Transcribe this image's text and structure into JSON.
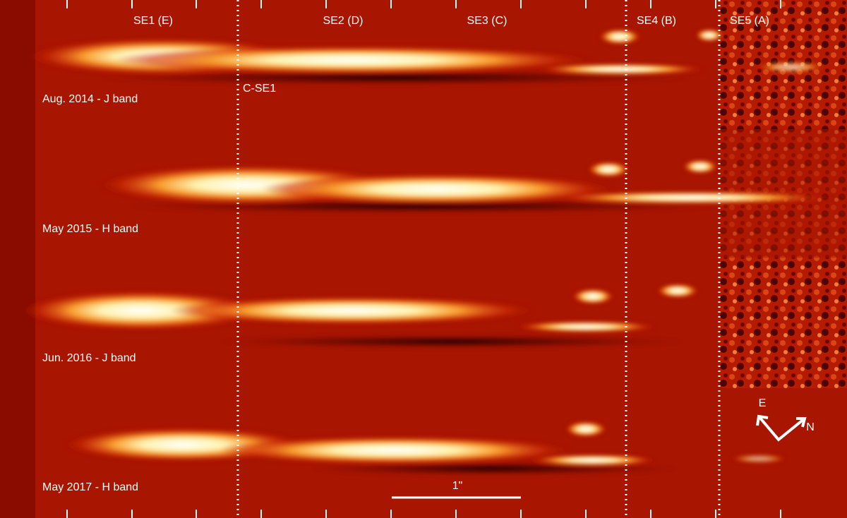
{
  "region_labels": [
    "SE1 (E)",
    "SE2 (D)",
    "SE3 (C)",
    "SE4 (B)",
    "SE5 (A)"
  ],
  "panels": [
    {
      "label": "Aug. 2014 - J band"
    },
    {
      "label": "May 2015 - H band"
    },
    {
      "label": "Jun. 2016 - J band"
    },
    {
      "label": "May 2017 - H band"
    }
  ],
  "annotation": "C-SE1",
  "scale_bar": "1\"",
  "compass": {
    "east": "E",
    "north": "N"
  }
}
